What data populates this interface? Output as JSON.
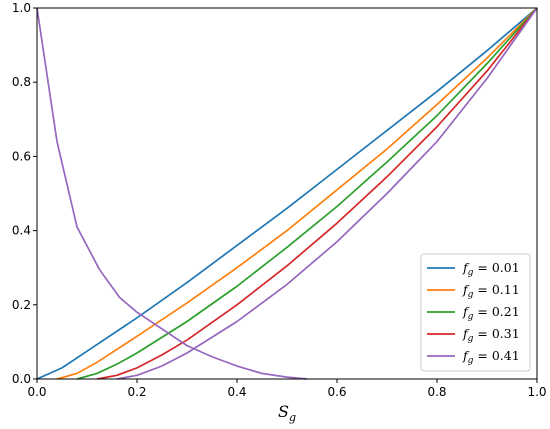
{
  "chart_data": {
    "type": "line",
    "title": "",
    "xlabel": "S",
    "xlabel_sub": "g",
    "ylabel": "",
    "xlim": [
      0.0,
      1.0
    ],
    "ylim": [
      0.0,
      1.0
    ],
    "xticks": [
      "0.0",
      "0.2",
      "0.4",
      "0.6",
      "0.8",
      "1.0"
    ],
    "yticks": [
      "0.0",
      "0.2",
      "0.4",
      "0.6",
      "0.8",
      "1.0"
    ],
    "grid": false,
    "legend_position": "lower-right",
    "series": [
      {
        "name": "f_g = 0.01",
        "label_main": "f",
        "label_sub": "g",
        "label_value": " = 0.01",
        "color": "#1f77b4",
        "x": [
          0.0,
          0.05,
          0.1,
          0.2,
          0.3,
          0.4,
          0.5,
          0.6,
          0.7,
          0.8,
          0.9,
          1.0
        ],
        "y": [
          0.0,
          0.03,
          0.075,
          0.165,
          0.26,
          0.36,
          0.46,
          0.565,
          0.67,
          0.775,
          0.885,
          1.0
        ]
      },
      {
        "name": "f_g = 0.11",
        "label_main": "f",
        "label_sub": "g",
        "label_value": " = 0.11",
        "color": "#ff7f0e",
        "x": [
          0.04,
          0.08,
          0.12,
          0.16,
          0.2,
          0.3,
          0.4,
          0.5,
          0.6,
          0.7,
          0.8,
          0.9,
          1.0
        ],
        "y": [
          0.0,
          0.015,
          0.045,
          0.08,
          0.115,
          0.205,
          0.3,
          0.4,
          0.51,
          0.62,
          0.74,
          0.865,
          1.0
        ]
      },
      {
        "name": "f_g = 0.21",
        "label_main": "f",
        "label_sub": "g",
        "label_value": " = 0.21",
        "color": "#2ca02c",
        "x": [
          0.08,
          0.12,
          0.16,
          0.2,
          0.3,
          0.4,
          0.5,
          0.6,
          0.7,
          0.8,
          0.9,
          1.0
        ],
        "y": [
          0.0,
          0.015,
          0.04,
          0.07,
          0.155,
          0.25,
          0.355,
          0.465,
          0.585,
          0.71,
          0.85,
          1.0
        ]
      },
      {
        "name": "f_g = 0.31",
        "label_main": "f",
        "label_sub": "g",
        "label_value": " = 0.31",
        "color": "#d62728",
        "x": [
          0.12,
          0.16,
          0.2,
          0.25,
          0.3,
          0.4,
          0.5,
          0.6,
          0.7,
          0.8,
          0.9,
          1.0
        ],
        "y": [
          0.0,
          0.01,
          0.03,
          0.065,
          0.105,
          0.2,
          0.305,
          0.42,
          0.545,
          0.68,
          0.83,
          1.0
        ]
      },
      {
        "name": "f_g = 0.41",
        "label_main": "f",
        "label_sub": "g",
        "label_value": " = 0.41",
        "color": "#9467bd",
        "x": [
          0.16,
          0.2,
          0.25,
          0.3,
          0.4,
          0.5,
          0.6,
          0.7,
          0.8,
          0.9,
          1.0
        ],
        "y": [
          0.0,
          0.01,
          0.035,
          0.07,
          0.155,
          0.255,
          0.37,
          0.5,
          0.64,
          0.81,
          1.0
        ]
      },
      {
        "name": "",
        "color": "#9467bd",
        "x": [
          0.0,
          0.04,
          0.08,
          0.125,
          0.165,
          0.2,
          0.25,
          0.3,
          0.35,
          0.4,
          0.45,
          0.5,
          0.54
        ],
        "y": [
          1.0,
          0.64,
          0.41,
          0.295,
          0.22,
          0.18,
          0.135,
          0.09,
          0.06,
          0.035,
          0.015,
          0.005,
          0.0
        ]
      }
    ]
  }
}
